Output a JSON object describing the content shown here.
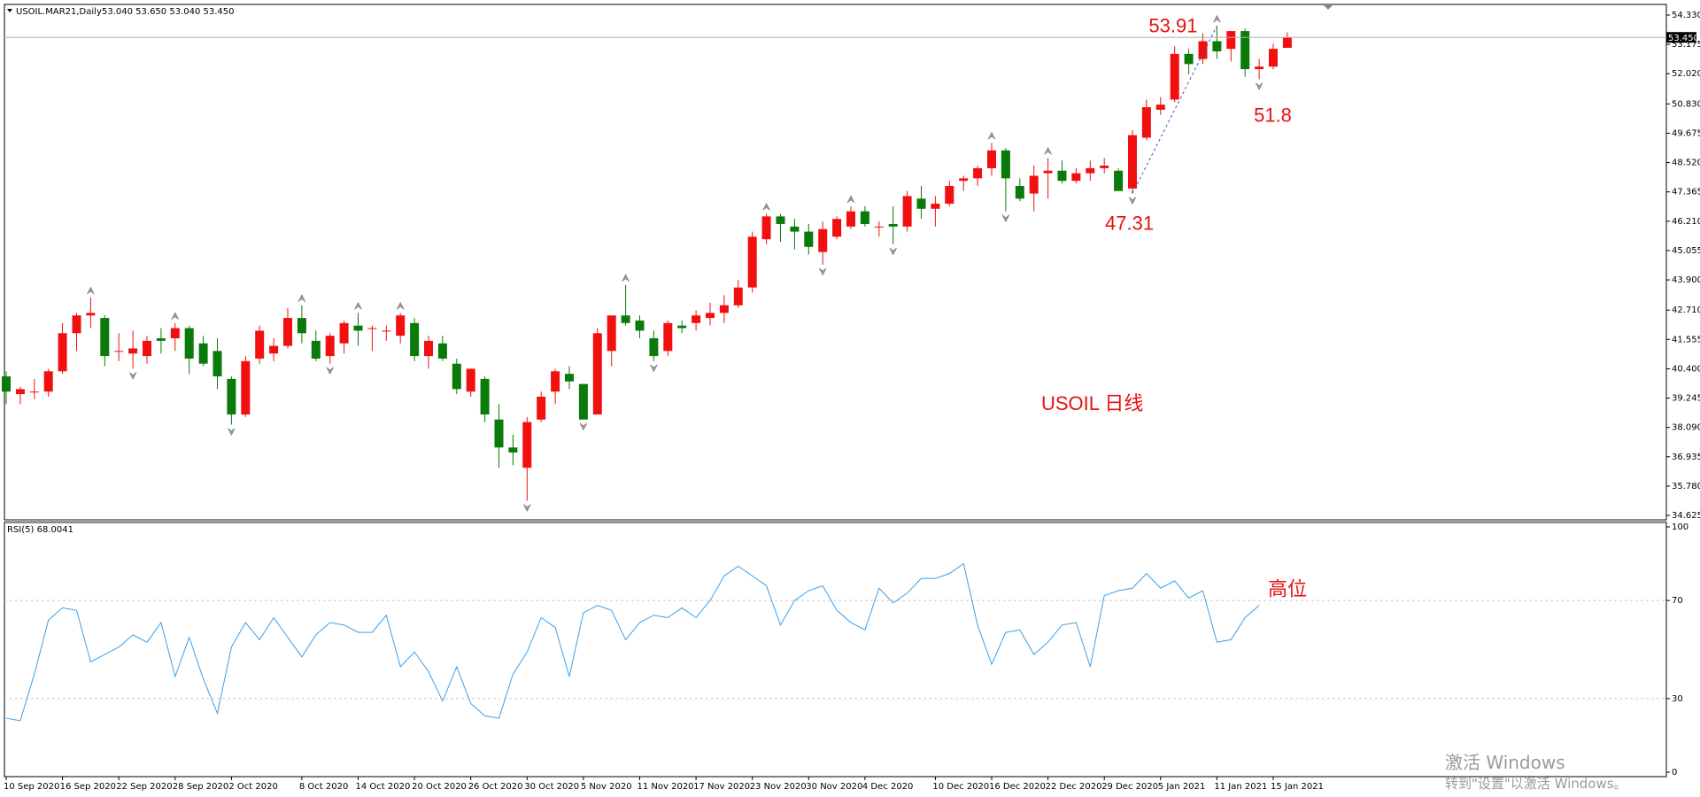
{
  "header": {
    "symbol": "USOIL.MAR21,Daily",
    "ohlc": "53.040 53.650 53.040 53.450"
  },
  "rsi_header": "RSI(5) 68.0041",
  "annotations": {
    "title": "USOIL 日线",
    "high_label": "53.91",
    "low_label": "47.31",
    "pullback_label": "51.8",
    "rsi_note": "高位"
  },
  "price_tag": "53.450",
  "watermark": {
    "line1": "激活 Windows",
    "line2": "转到\"设置\"以激活 Windows。"
  },
  "colors": {
    "bull": "#f20f0f",
    "bear": "#0a7a0a",
    "rsi_line": "#3aa0e8",
    "annotation": "#e81010"
  },
  "chart_data": [
    {
      "type": "candlestick",
      "series_name": "USOIL.MAR21,Daily",
      "ylim": [
        34.625,
        54.33
      ],
      "y_ticks": [
        "54.330",
        "53.175",
        "52.020",
        "50.830",
        "49.675",
        "48.520",
        "47.365",
        "46.210",
        "45.055",
        "43.900",
        "42.710",
        "41.555",
        "40.400",
        "39.245",
        "38.090",
        "36.935",
        "35.780",
        "34.625"
      ],
      "x_tick_labels": [
        "10 Sep 2020",
        "16 Sep 2020",
        "22 Sep 2020",
        "28 Sep 2020",
        "2 Oct 2020",
        "8 Oct 2020",
        "14 Oct 2020",
        "20 Oct 2020",
        "26 Oct 2020",
        "30 Oct 2020",
        "5 Nov 2020",
        "11 Nov 2020",
        "17 Nov 2020",
        "23 Nov 2020",
        "30 Nov 2020",
        "4 Dec 2020",
        "10 Dec 2020",
        "16 Dec 2020",
        "22 Dec 2020",
        "29 Dec 2020",
        "5 Jan 2021",
        "11 Jan 2021",
        "15 Jan 2021"
      ],
      "candles": [
        {
          "o": 40.1,
          "h": 40.3,
          "l": 39.0,
          "c": 39.5
        },
        {
          "o": 39.4,
          "h": 39.7,
          "l": 39.0,
          "c": 39.6
        },
        {
          "o": 39.5,
          "h": 40.0,
          "l": 39.2,
          "c": 39.5
        },
        {
          "o": 39.5,
          "h": 40.4,
          "l": 39.3,
          "c": 40.3
        },
        {
          "o": 40.3,
          "h": 42.2,
          "l": 40.2,
          "c": 41.8
        },
        {
          "o": 41.8,
          "h": 42.6,
          "l": 41.1,
          "c": 42.5
        },
        {
          "o": 42.5,
          "h": 43.2,
          "l": 42.0,
          "c": 42.6
        },
        {
          "o": 42.4,
          "h": 42.5,
          "l": 40.5,
          "c": 40.9
        },
        {
          "o": 41.1,
          "h": 41.8,
          "l": 40.7,
          "c": 41.1
        },
        {
          "o": 41.0,
          "h": 41.9,
          "l": 40.4,
          "c": 41.2
        },
        {
          "o": 40.9,
          "h": 41.7,
          "l": 40.6,
          "c": 41.5
        },
        {
          "o": 41.6,
          "h": 42.0,
          "l": 41.0,
          "c": 41.5
        },
        {
          "o": 41.6,
          "h": 42.2,
          "l": 41.1,
          "c": 42.0
        },
        {
          "o": 42.0,
          "h": 42.1,
          "l": 40.2,
          "c": 40.8
        },
        {
          "o": 41.4,
          "h": 41.7,
          "l": 40.5,
          "c": 40.6
        },
        {
          "o": 41.1,
          "h": 41.6,
          "l": 39.6,
          "c": 40.1
        },
        {
          "o": 40.0,
          "h": 40.1,
          "l": 38.2,
          "c": 38.6
        },
        {
          "o": 38.6,
          "h": 40.9,
          "l": 38.5,
          "c": 40.7
        },
        {
          "o": 40.8,
          "h": 42.1,
          "l": 40.6,
          "c": 41.9
        },
        {
          "o": 41.0,
          "h": 41.6,
          "l": 40.7,
          "c": 41.3
        },
        {
          "o": 41.3,
          "h": 42.8,
          "l": 41.2,
          "c": 42.4
        },
        {
          "o": 42.4,
          "h": 42.9,
          "l": 41.4,
          "c": 41.8
        },
        {
          "o": 41.5,
          "h": 41.9,
          "l": 40.7,
          "c": 40.8
        },
        {
          "o": 40.9,
          "h": 41.8,
          "l": 40.6,
          "c": 41.7
        },
        {
          "o": 41.4,
          "h": 42.3,
          "l": 41.0,
          "c": 42.2
        },
        {
          "o": 42.1,
          "h": 42.6,
          "l": 41.3,
          "c": 41.9
        },
        {
          "o": 42.0,
          "h": 42.1,
          "l": 41.1,
          "c": 42.0
        },
        {
          "o": 41.9,
          "h": 42.1,
          "l": 41.5,
          "c": 41.9
        },
        {
          "o": 41.7,
          "h": 42.6,
          "l": 41.4,
          "c": 42.5
        },
        {
          "o": 42.2,
          "h": 42.4,
          "l": 40.7,
          "c": 40.9
        },
        {
          "o": 40.9,
          "h": 41.7,
          "l": 40.4,
          "c": 41.5
        },
        {
          "o": 41.4,
          "h": 41.7,
          "l": 40.7,
          "c": 40.8
        },
        {
          "o": 40.6,
          "h": 40.8,
          "l": 39.4,
          "c": 39.6
        },
        {
          "o": 39.5,
          "h": 40.3,
          "l": 39.3,
          "c": 40.4
        },
        {
          "o": 40.0,
          "h": 40.1,
          "l": 38.3,
          "c": 38.6
        },
        {
          "o": 38.4,
          "h": 39.0,
          "l": 36.5,
          "c": 37.3
        },
        {
          "o": 37.3,
          "h": 37.8,
          "l": 36.6,
          "c": 37.1
        },
        {
          "o": 36.5,
          "h": 38.5,
          "l": 35.2,
          "c": 38.3
        },
        {
          "o": 38.4,
          "h": 39.5,
          "l": 38.3,
          "c": 39.3
        },
        {
          "o": 39.5,
          "h": 40.4,
          "l": 39.0,
          "c": 40.3
        },
        {
          "o": 40.2,
          "h": 40.5,
          "l": 39.6,
          "c": 39.9
        },
        {
          "o": 39.8,
          "h": 39.8,
          "l": 38.4,
          "c": 38.4
        },
        {
          "o": 38.6,
          "h": 42.0,
          "l": 38.6,
          "c": 41.8
        },
        {
          "o": 41.1,
          "h": 42.4,
          "l": 40.5,
          "c": 42.5
        },
        {
          "o": 42.5,
          "h": 43.7,
          "l": 42.1,
          "c": 42.2
        },
        {
          "o": 42.3,
          "h": 42.5,
          "l": 41.6,
          "c": 41.9
        },
        {
          "o": 41.6,
          "h": 41.9,
          "l": 40.7,
          "c": 40.9
        },
        {
          "o": 41.1,
          "h": 42.3,
          "l": 40.9,
          "c": 42.2
        },
        {
          "o": 42.1,
          "h": 42.3,
          "l": 41.8,
          "c": 42.0
        },
        {
          "o": 42.2,
          "h": 42.7,
          "l": 41.9,
          "c": 42.5
        },
        {
          "o": 42.4,
          "h": 43.0,
          "l": 42.1,
          "c": 42.6
        },
        {
          "o": 42.6,
          "h": 43.3,
          "l": 42.2,
          "c": 42.9
        },
        {
          "o": 42.9,
          "h": 43.9,
          "l": 42.8,
          "c": 43.6
        },
        {
          "o": 43.6,
          "h": 45.8,
          "l": 43.4,
          "c": 45.6
        },
        {
          "o": 45.5,
          "h": 46.5,
          "l": 45.3,
          "c": 46.4
        },
        {
          "o": 46.4,
          "h": 46.5,
          "l": 45.4,
          "c": 46.1
        },
        {
          "o": 46.0,
          "h": 46.3,
          "l": 45.1,
          "c": 45.8
        },
        {
          "o": 45.8,
          "h": 46.1,
          "l": 44.9,
          "c": 45.2
        },
        {
          "o": 45.0,
          "h": 46.2,
          "l": 44.5,
          "c": 45.9
        },
        {
          "o": 45.6,
          "h": 46.4,
          "l": 45.5,
          "c": 46.3
        },
        {
          "o": 46.0,
          "h": 46.8,
          "l": 45.9,
          "c": 46.6
        },
        {
          "o": 46.6,
          "h": 46.8,
          "l": 46.0,
          "c": 46.1
        },
        {
          "o": 46.0,
          "h": 46.2,
          "l": 45.6,
          "c": 46.0
        },
        {
          "o": 46.1,
          "h": 46.8,
          "l": 45.3,
          "c": 46.0
        },
        {
          "o": 46.0,
          "h": 47.4,
          "l": 45.8,
          "c": 47.2
        },
        {
          "o": 47.1,
          "h": 47.6,
          "l": 46.3,
          "c": 46.7
        },
        {
          "o": 46.7,
          "h": 47.2,
          "l": 46.0,
          "c": 46.9
        },
        {
          "o": 46.9,
          "h": 47.8,
          "l": 46.8,
          "c": 47.6
        },
        {
          "o": 47.8,
          "h": 48.0,
          "l": 47.4,
          "c": 47.9
        },
        {
          "o": 47.9,
          "h": 48.4,
          "l": 47.6,
          "c": 48.3
        },
        {
          "o": 48.3,
          "h": 49.3,
          "l": 48.0,
          "c": 49.0
        },
        {
          "o": 49.0,
          "h": 49.1,
          "l": 46.6,
          "c": 47.9
        },
        {
          "o": 47.6,
          "h": 47.9,
          "l": 47.0,
          "c": 47.1
        },
        {
          "o": 47.3,
          "h": 48.4,
          "l": 46.6,
          "c": 48.0
        },
        {
          "o": 48.1,
          "h": 48.7,
          "l": 47.1,
          "c": 48.2
        },
        {
          "o": 48.2,
          "h": 48.6,
          "l": 47.7,
          "c": 47.8
        },
        {
          "o": 47.8,
          "h": 48.3,
          "l": 47.7,
          "c": 48.1
        },
        {
          "o": 48.1,
          "h": 48.6,
          "l": 47.8,
          "c": 48.3
        },
        {
          "o": 48.3,
          "h": 48.7,
          "l": 48.1,
          "c": 48.4
        },
        {
          "o": 48.2,
          "h": 48.3,
          "l": 47.4,
          "c": 47.4
        },
        {
          "o": 47.5,
          "h": 49.8,
          "l": 47.3,
          "c": 49.6
        },
        {
          "o": 49.5,
          "h": 51.0,
          "l": 49.4,
          "c": 50.7
        },
        {
          "o": 50.6,
          "h": 51.1,
          "l": 50.4,
          "c": 50.8
        },
        {
          "o": 51.0,
          "h": 53.1,
          "l": 50.9,
          "c": 52.8
        },
        {
          "o": 52.8,
          "h": 53.0,
          "l": 52.0,
          "c": 52.4
        },
        {
          "o": 52.6,
          "h": 53.6,
          "l": 52.4,
          "c": 53.3
        },
        {
          "o": 53.3,
          "h": 53.9,
          "l": 52.6,
          "c": 52.9
        },
        {
          "o": 53.0,
          "h": 53.7,
          "l": 52.5,
          "c": 53.7
        },
        {
          "o": 53.7,
          "h": 53.8,
          "l": 51.9,
          "c": 52.2
        },
        {
          "o": 52.2,
          "h": 52.6,
          "l": 51.8,
          "c": 52.3
        },
        {
          "o": 52.3,
          "h": 53.2,
          "l": 52.2,
          "c": 53.0
        },
        {
          "o": 53.04,
          "h": 53.65,
          "l": 53.04,
          "c": 53.45
        }
      ]
    },
    {
      "type": "line",
      "series_name": "RSI(5)",
      "ylim": [
        0,
        100
      ],
      "y_ticks": [
        "100",
        "70",
        "30",
        "0"
      ],
      "levels": [
        70,
        30
      ],
      "values": [
        22,
        21,
        40,
        62,
        67,
        66,
        45,
        48,
        51,
        56,
        53,
        61,
        39,
        55,
        38,
        24,
        51,
        61,
        54,
        63,
        55,
        47,
        56,
        61,
        60,
        57,
        57,
        64,
        43,
        49,
        41,
        29,
        43,
        28,
        23,
        22,
        40,
        49,
        63,
        59,
        39,
        65,
        68,
        66,
        54,
        61,
        64,
        63,
        67,
        63,
        70,
        80,
        84,
        80,
        76,
        60,
        70,
        74,
        76,
        66,
        61,
        58,
        75,
        69,
        73,
        79,
        79,
        81,
        85,
        60,
        44,
        57,
        58,
        48,
        53,
        60,
        61,
        43,
        72,
        74,
        75,
        81,
        75,
        78,
        71,
        74,
        53,
        54,
        63,
        68
      ]
    }
  ]
}
